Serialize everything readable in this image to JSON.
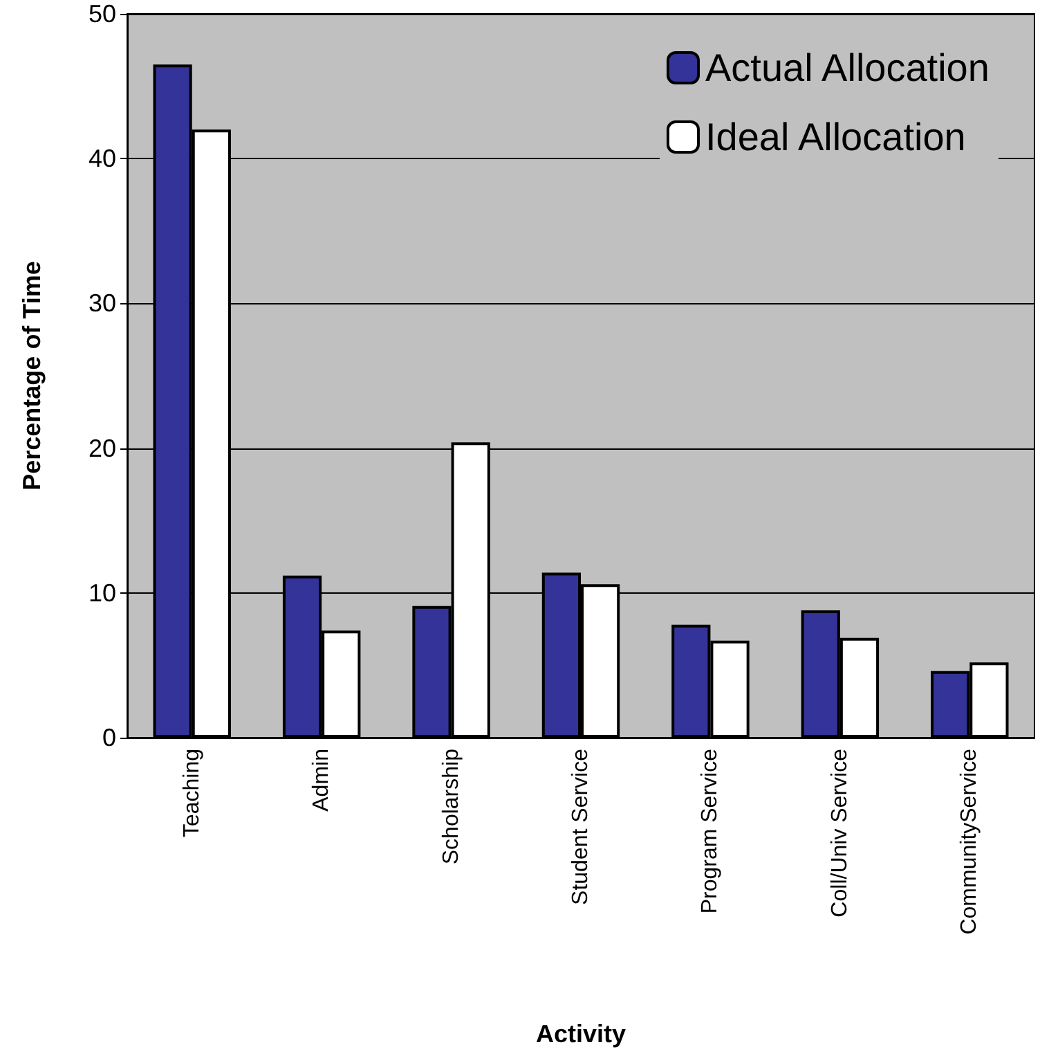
{
  "chart_data": {
    "type": "bar",
    "xlabel": "Activity",
    "ylabel": "Percentage of Time",
    "categories": [
      "Teaching",
      "Admin",
      "Scholarship",
      "Student Service",
      "Program Service",
      "Coll/Univ Service",
      "CommunityService"
    ],
    "series": [
      {
        "name": "Actual Allocation",
        "color": "#333399",
        "values": [
          46.5,
          11.2,
          9.1,
          11.4,
          7.8,
          8.8,
          4.6
        ]
      },
      {
        "name": "Ideal Allocation",
        "color": "#ffffff",
        "values": [
          42.0,
          7.4,
          20.4,
          10.6,
          6.7,
          6.9,
          5.2
        ]
      }
    ],
    "ylim": [
      0,
      50
    ],
    "yticks": [
      0,
      10,
      20,
      30,
      40,
      50
    ],
    "grid": true,
    "legend": "top right"
  }
}
